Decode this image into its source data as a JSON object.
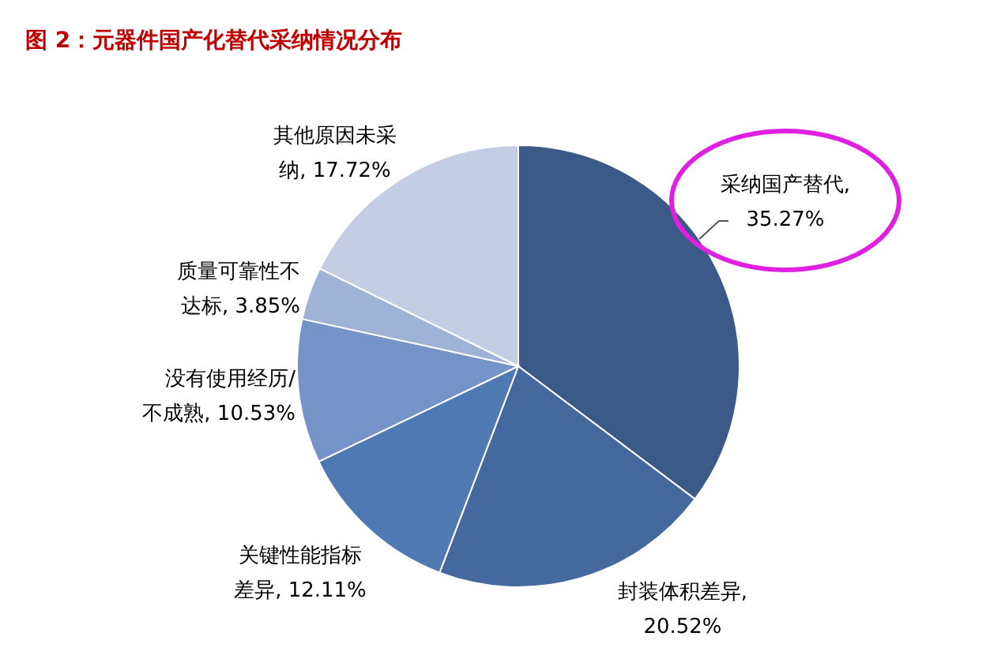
{
  "chart_data": {
    "type": "pie",
    "title": "图 2：元器件国产化替代采纳情况分布",
    "categories": [
      "采纳国产替代",
      "封装体积差异",
      "关键性能指标差异",
      "没有使用经历/不成熟",
      "质量可靠性不达标",
      "其他原因未采纳"
    ],
    "value_labels": [
      ", 35.27%",
      ", 20.52%",
      ", 12.11%",
      ", 10.53%",
      ", 3.85%",
      ", 17.72%"
    ],
    "values": [
      35.27,
      20.52,
      12.11,
      10.53,
      3.85,
      17.72
    ],
    "colors": [
      "#3b5a88",
      "#43699f",
      "#4e79b3",
      "#7593c6",
      "#9eb1d6",
      "#c3cde3"
    ]
  }
}
